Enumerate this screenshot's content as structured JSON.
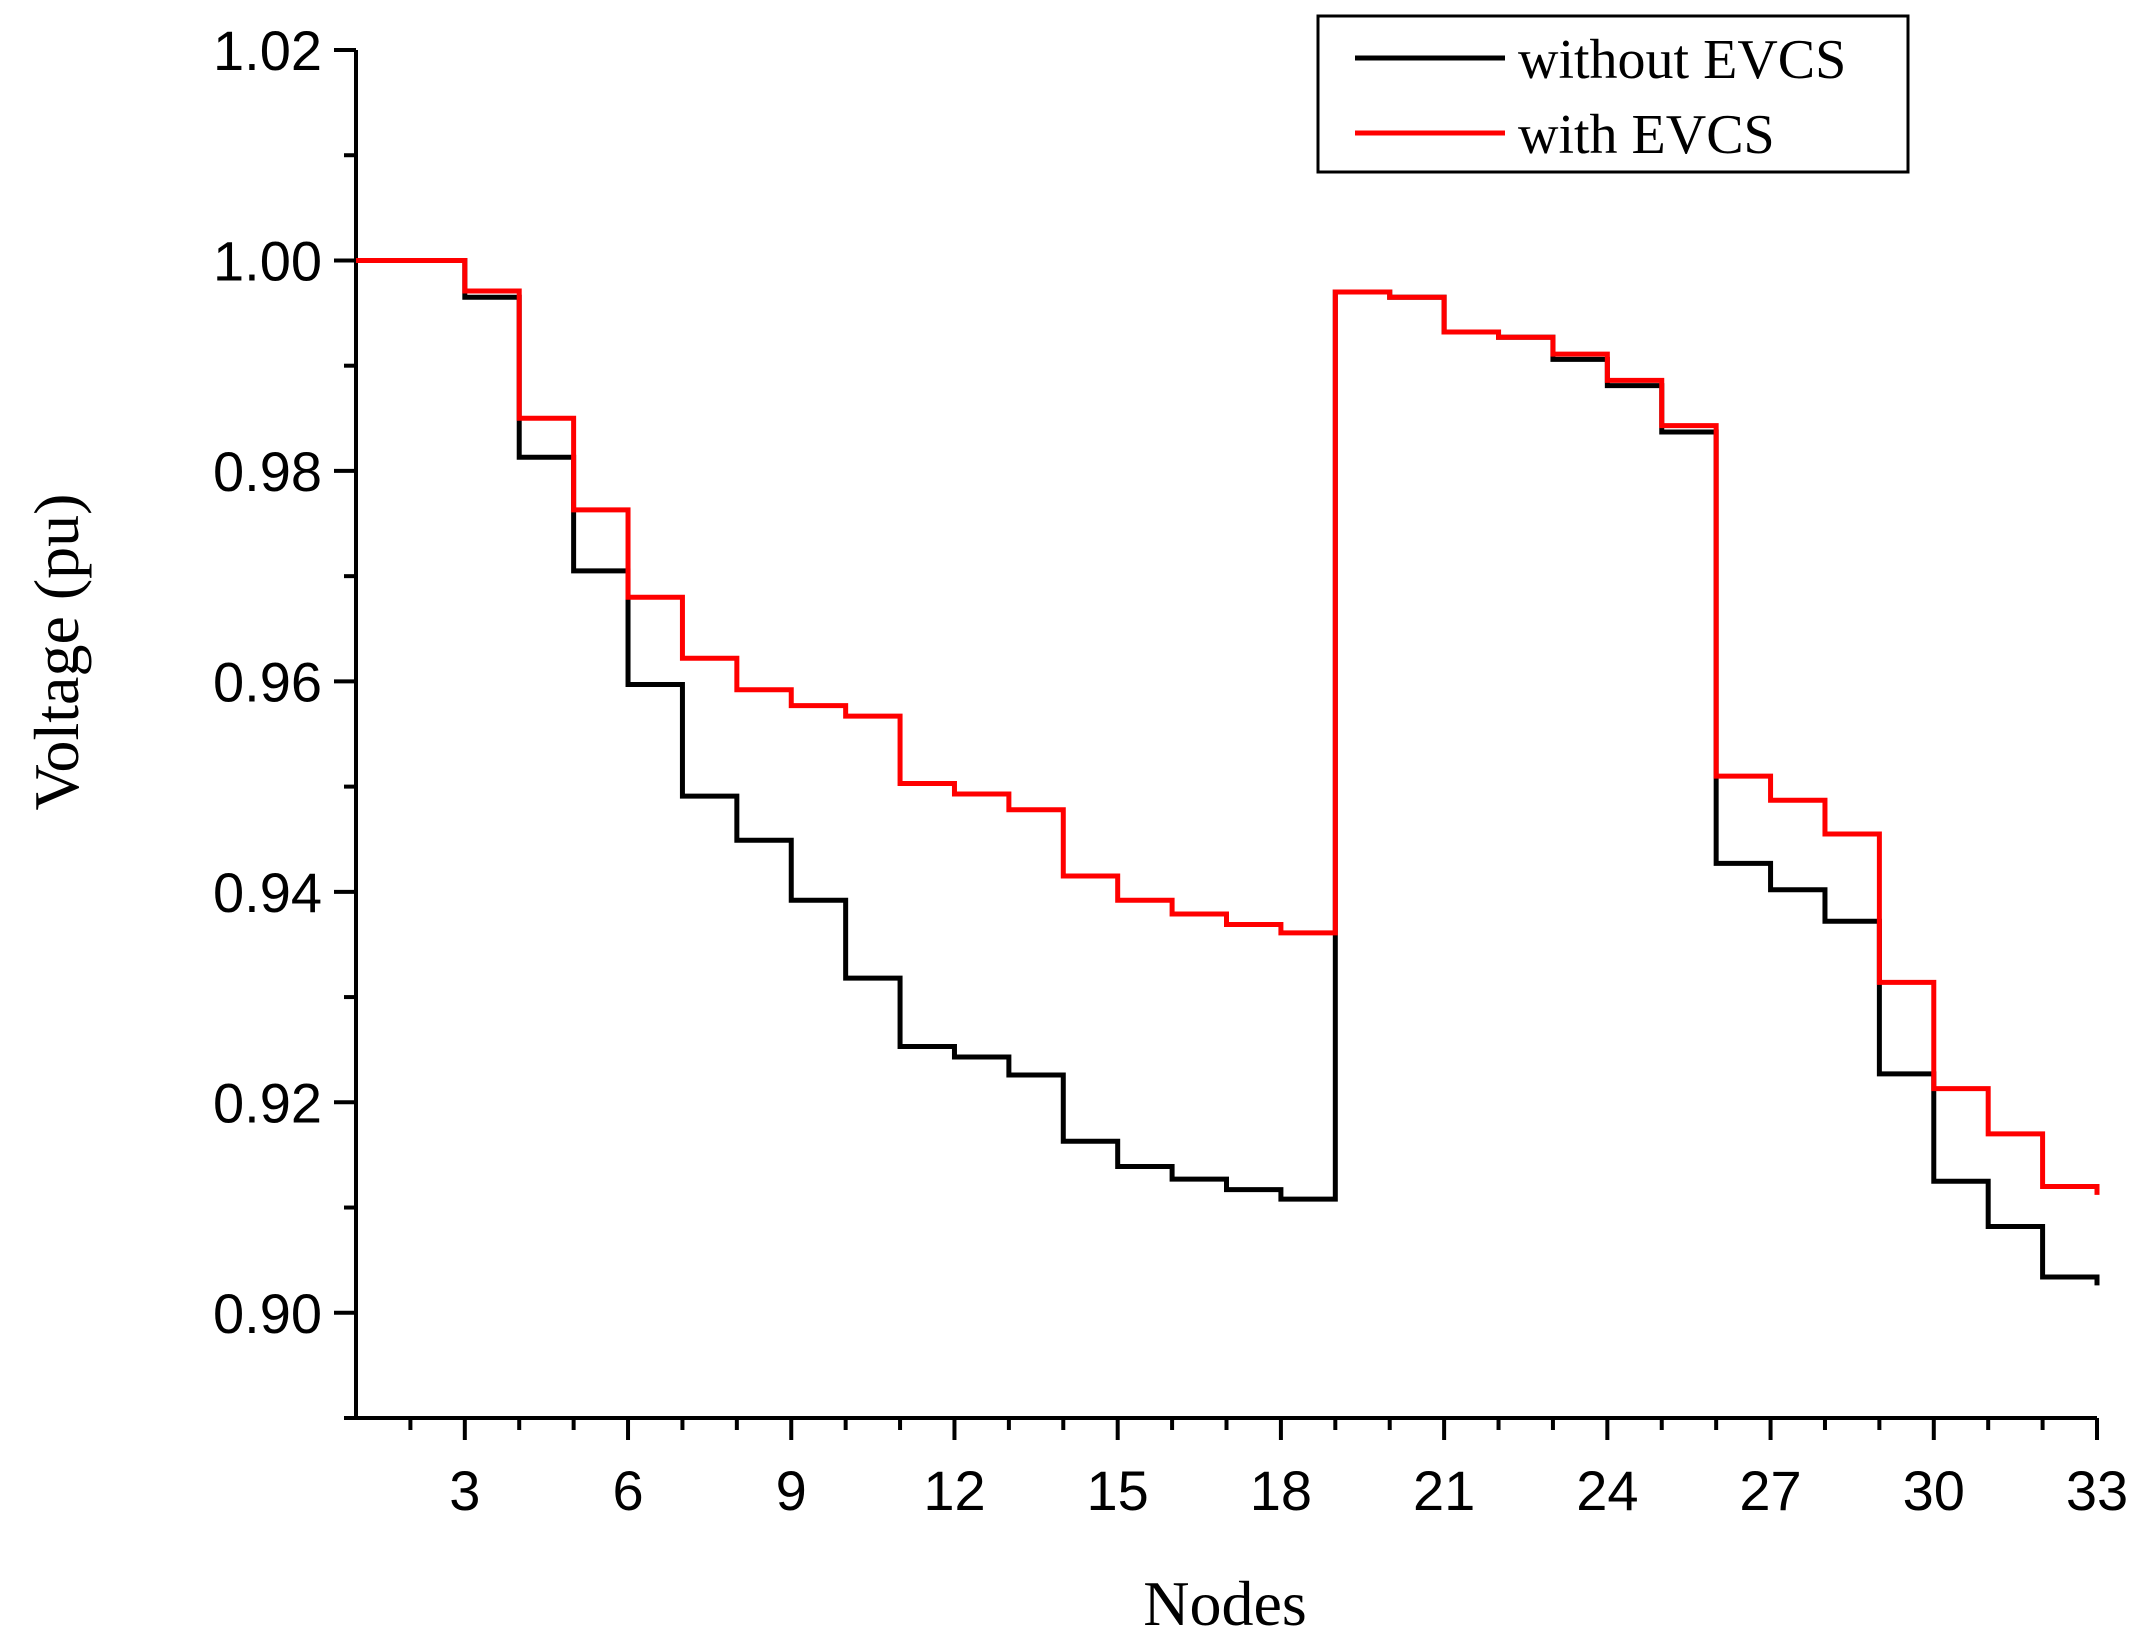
{
  "chart_data": {
    "type": "line",
    "step": "post",
    "title": "",
    "xlabel": "Nodes",
    "ylabel": "Voltage (pu)",
    "xlim": [
      1,
      33
    ],
    "ylim": [
      0.89,
      1.02
    ],
    "x_ticks": [
      3,
      6,
      9,
      12,
      15,
      18,
      21,
      24,
      27,
      30,
      33
    ],
    "x_tick_labels": [
      "3",
      "6",
      "9",
      "12",
      "15",
      "18",
      "21",
      "24",
      "27",
      "30",
      "33"
    ],
    "y_ticks": [
      0.9,
      0.92,
      0.94,
      0.96,
      0.98,
      1.0,
      1.02
    ],
    "y_tick_labels": [
      "0.90",
      "0.92",
      "0.94",
      "0.96",
      "0.98",
      "1.00",
      "1.02"
    ],
    "legend_position": "top-right",
    "x": [
      1,
      2,
      3,
      4,
      5,
      6,
      7,
      8,
      9,
      10,
      11,
      12,
      13,
      14,
      15,
      16,
      17,
      18,
      19,
      20,
      21,
      22,
      23,
      24,
      25,
      26,
      27,
      28,
      29,
      30,
      31,
      32,
      33
    ],
    "series": [
      {
        "name": "without EVCS",
        "color": "#000000",
        "values": [
          1.0,
          1.0,
          0.9965,
          0.9813,
          0.9705,
          0.9597,
          0.9491,
          0.9449,
          0.9392,
          0.9318,
          0.9253,
          0.9243,
          0.9226,
          0.9163,
          0.9139,
          0.9127,
          0.9117,
          0.9108,
          0.997,
          0.9965,
          0.9932,
          0.9927,
          0.9906,
          0.9881,
          0.9837,
          0.9427,
          0.9402,
          0.9372,
          0.9227,
          0.9125,
          0.9082,
          0.9034,
          0.9026
        ]
      },
      {
        "name": "with EVCS",
        "color": "#ff0000",
        "values": [
          1.0,
          1.0,
          0.9971,
          0.985,
          0.9763,
          0.968,
          0.9622,
          0.9592,
          0.9577,
          0.9567,
          0.9503,
          0.9493,
          0.9478,
          0.9415,
          0.9392,
          0.9379,
          0.9369,
          0.9361,
          0.997,
          0.9965,
          0.9932,
          0.9927,
          0.9911,
          0.9886,
          0.9843,
          0.951,
          0.9487,
          0.9455,
          0.9314,
          0.9213,
          0.917,
          0.912,
          0.9112
        ]
      }
    ]
  }
}
